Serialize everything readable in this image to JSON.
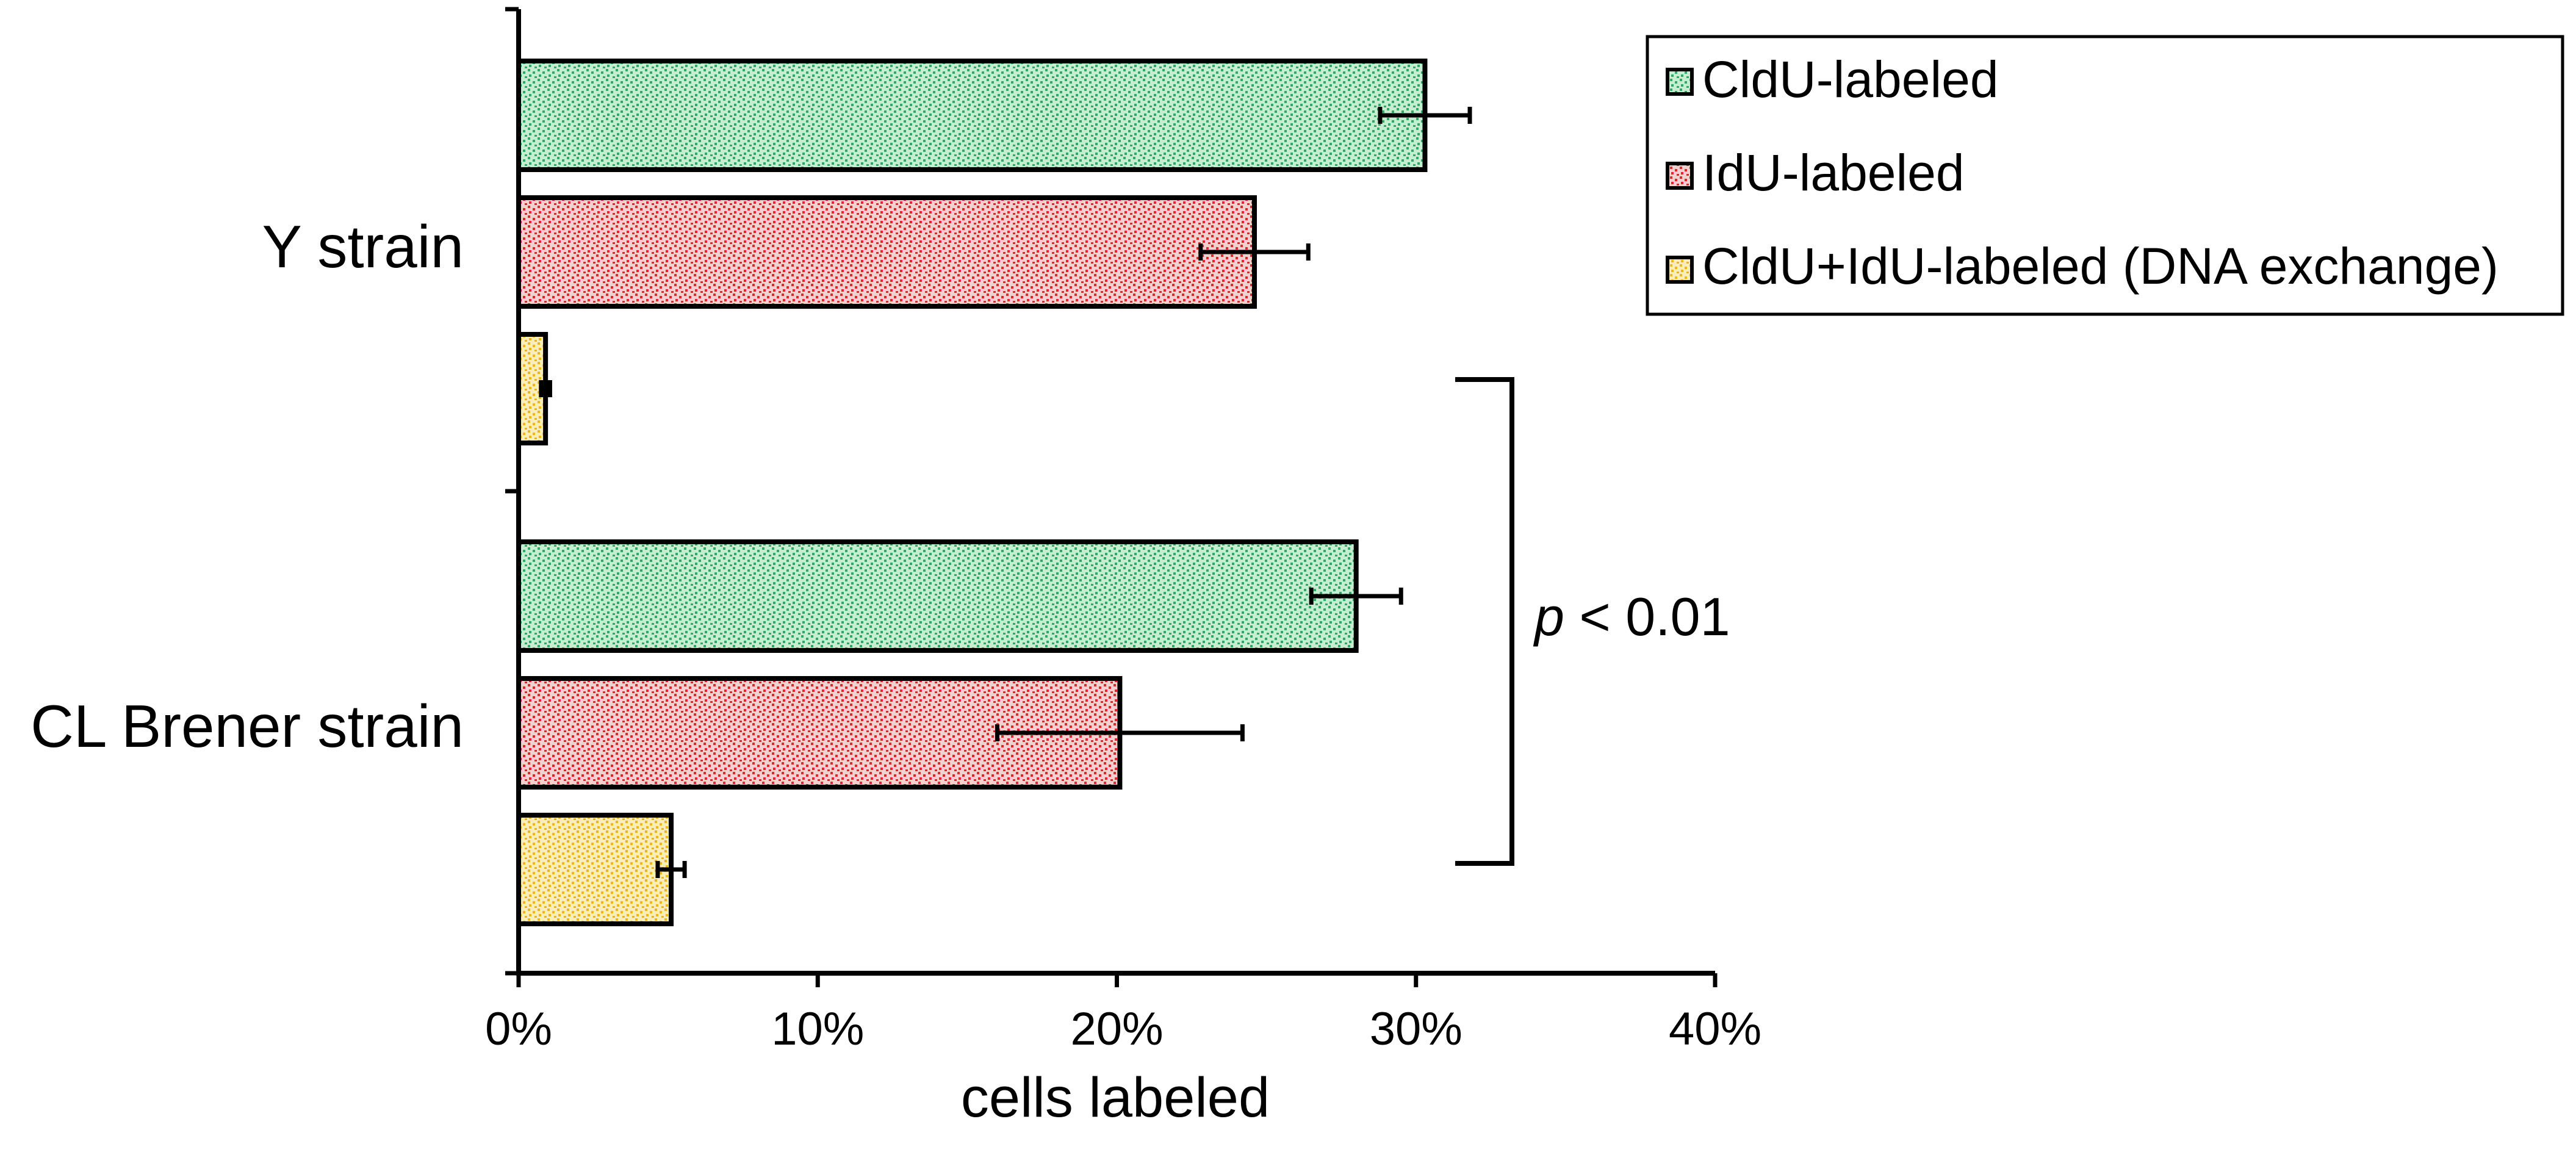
{
  "chart_data": {
    "type": "bar",
    "orientation": "horizontal",
    "categories": [
      "Y strain",
      "CL Brener strain"
    ],
    "series": [
      {
        "name": "CldU-labeled",
        "values": [
          30.3,
          28.0
        ],
        "errors": [
          1.5,
          1.5
        ],
        "color": "#2eaa62",
        "pattern_bg": "#c5edd2"
      },
      {
        "name": "IdU-labeled",
        "values": [
          24.6,
          20.1
        ],
        "errors": [
          1.8,
          4.1
        ],
        "color": "#e3262b",
        "pattern_bg": "#f7cfcf"
      },
      {
        "name": "CldU+IdU-labeled (DNA exchange)",
        "values": [
          0.9,
          5.1
        ],
        "errors": [
          0.15,
          0.45
        ],
        "color": "#f0b41c",
        "pattern_bg": "#fbeeb4"
      }
    ],
    "xlim": [
      0,
      40
    ],
    "xticks": [
      "0%",
      "10%",
      "20%",
      "30%",
      "40%"
    ],
    "xlabel": "cells labeled",
    "ylabel": "",
    "legend_position": "top-right",
    "grid": false,
    "annotation": {
      "p_symbol": "p",
      "text": " < 0.01",
      "between": "CldU+IdU-labeled bars of Y strain and CL Brener strain"
    }
  }
}
